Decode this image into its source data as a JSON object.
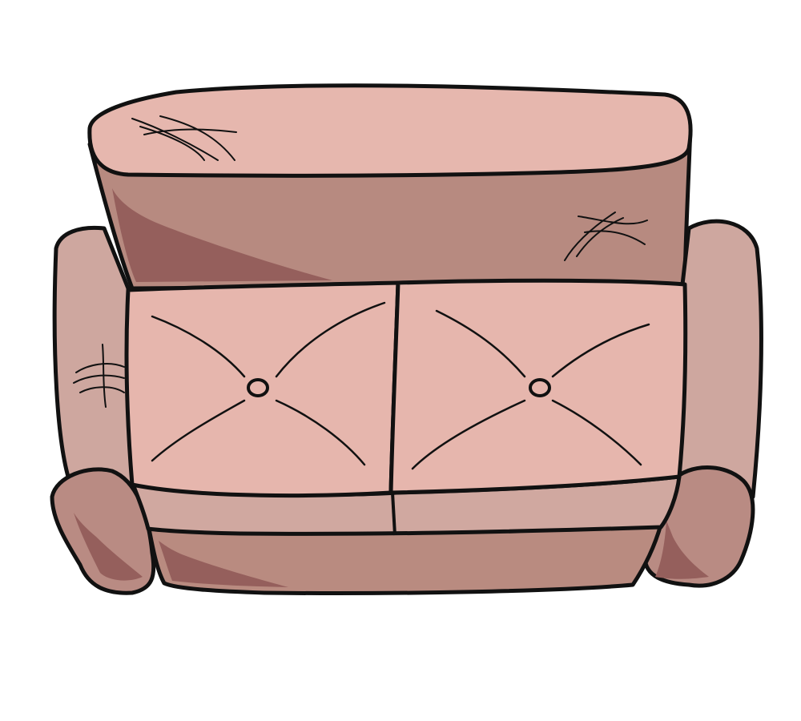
{
  "illustration": {
    "subject": "sofa",
    "view": "top-down",
    "cushion_count": 2,
    "button_count": 2
  },
  "colors": {
    "background": "#ffffff",
    "outline": "#111111",
    "backrest_top": "#e6b7ae",
    "backrest_front": "#b78a80",
    "shadow": "#955f5c",
    "armrest": "#cea79f",
    "armrest_front": "#b98b83",
    "seat_cushion": "#e6b6ad",
    "seat_front": "#d0a8a0",
    "base": "#b98b80"
  }
}
